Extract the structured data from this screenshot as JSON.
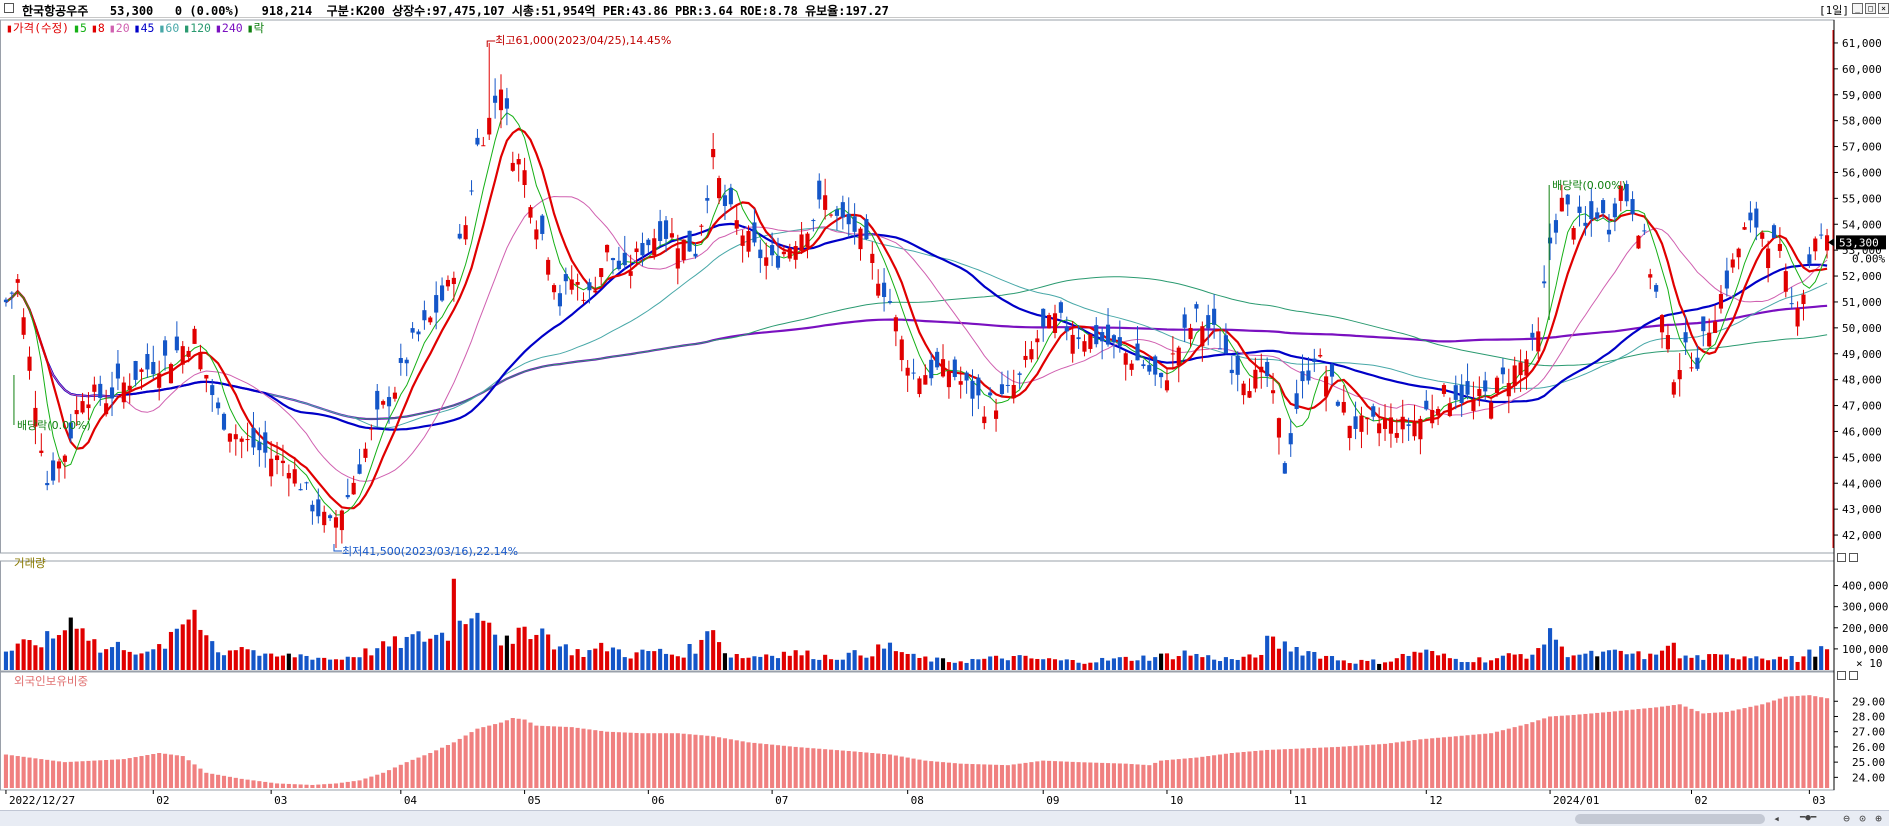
{
  "header": {
    "title": "한국항공우주   53,300   0 (0.00%)   918,214  구분:K200 상장수:97,475,107 시총:51,954억 PER:43.86 PBR:3.64 ROE:8.78 유보율:197.27",
    "period": "[1일]"
  },
  "legend": [
    {
      "label": "가격(수정)",
      "color": "#e00000"
    },
    {
      "label": "5",
      "color": "#16b016"
    },
    {
      "label": "8",
      "color": "#e00000"
    },
    {
      "label": "20",
      "color": "#d060b0"
    },
    {
      "label": "45",
      "color": "#0000c8"
    },
    {
      "label": "60",
      "color": "#48a8a8"
    },
    {
      "label": "120",
      "color": "#2a9a70"
    },
    {
      "label": "240",
      "color": "#7a10c0"
    },
    {
      "label": "락",
      "color": "#108010"
    }
  ],
  "panels": {
    "volume_title": "거래량",
    "foreign_title": "외국인보유비중"
  },
  "annotations": {
    "high": "최고61,000(2023/04/25),14.45%",
    "low": "최저41,500(2023/03/16),22.14%",
    "dividend": "배당락(0.00%)"
  },
  "chart_data": {
    "type": "candlestick",
    "current_price": "53,300",
    "current_change": "0.00%",
    "price_axis": {
      "min": 41500,
      "max": 61500,
      "ticks": [
        "61,000",
        "60,000",
        "59,000",
        "58,000",
        "57,000",
        "56,000",
        "55,000",
        "54,000",
        "53,000",
        "52,000",
        "51,000",
        "50,000",
        "49,000",
        "48,000",
        "47,000",
        "46,000",
        "45,000",
        "44,000",
        "43,000",
        "42,000"
      ]
    },
    "volume_axis": {
      "max": 450000,
      "ticks": [
        "400,000",
        "300,000",
        "200,000",
        "100,000"
      ],
      "unit": "× 10"
    },
    "foreign_axis": {
      "min": 23.3,
      "max": 30.2,
      "ticks": [
        "29.00",
        "28.00",
        "27.00",
        "26.00",
        "25.00",
        "24.00"
      ]
    },
    "x_labels": [
      "2022/12/27",
      "02",
      "03",
      "04",
      "05",
      "06",
      "07",
      "08",
      "09",
      "10",
      "11",
      "12",
      "2024/01",
      "02",
      "03"
    ],
    "x_label_days": [
      0,
      25,
      45,
      67,
      88,
      109,
      130,
      153,
      176,
      197,
      218,
      241,
      262,
      286,
      306
    ],
    "days": 310,
    "price_anchors": [
      [
        0,
        51000
      ],
      [
        2,
        51800
      ],
      [
        5,
        47200
      ],
      [
        7,
        44000
      ],
      [
        10,
        45200
      ],
      [
        13,
        47500
      ],
      [
        17,
        47300
      ],
      [
        22,
        48200
      ],
      [
        28,
        48900
      ],
      [
        32,
        49700
      ],
      [
        36,
        46700
      ],
      [
        40,
        45700
      ],
      [
        45,
        45000
      ],
      [
        48,
        44800
      ],
      [
        52,
        43200
      ],
      [
        55,
        42300
      ],
      [
        58,
        43500
      ],
      [
        61,
        45300
      ],
      [
        63,
        46500
      ],
      [
        66,
        47700
      ],
      [
        69,
        49400
      ],
      [
        72,
        50300
      ],
      [
        75,
        51500
      ],
      [
        78,
        54000
      ],
      [
        80,
        57000
      ],
      [
        82,
        58000
      ],
      [
        84,
        59500
      ],
      [
        86,
        56800
      ],
      [
        88,
        56000
      ],
      [
        90,
        54200
      ],
      [
        92,
        53000
      ],
      [
        94,
        51000
      ],
      [
        96,
        51900
      ],
      [
        99,
        51200
      ],
      [
        102,
        53000
      ],
      [
        105,
        52000
      ],
      [
        108,
        53100
      ],
      [
        111,
        53800
      ],
      [
        114,
        53400
      ],
      [
        117,
        53000
      ],
      [
        120,
        56500
      ],
      [
        122,
        54700
      ],
      [
        124,
        54000
      ],
      [
        127,
        53000
      ],
      [
        130,
        52500
      ],
      [
        133,
        53200
      ],
      [
        137,
        54300
      ],
      [
        139,
        55000
      ],
      [
        141,
        54200
      ],
      [
        144,
        53800
      ],
      [
        147,
        52600
      ],
      [
        150,
        51000
      ],
      [
        152,
        49400
      ],
      [
        154,
        48200
      ],
      [
        157,
        48300
      ],
      [
        160,
        48400
      ],
      [
        163,
        47700
      ],
      [
        166,
        47000
      ],
      [
        169,
        47200
      ],
      [
        172,
        48000
      ],
      [
        175,
        49600
      ],
      [
        178,
        50300
      ],
      [
        182,
        49800
      ],
      [
        186,
        49500
      ],
      [
        190,
        49000
      ],
      [
        193,
        48600
      ],
      [
        196,
        47800
      ],
      [
        199,
        49300
      ],
      [
        202,
        50400
      ],
      [
        205,
        49800
      ],
      [
        208,
        48700
      ],
      [
        211,
        48000
      ],
      [
        214,
        48100
      ],
      [
        216,
        46200
      ],
      [
        217,
        44600
      ],
      [
        219,
        47000
      ],
      [
        222,
        49000
      ],
      [
        224,
        48200
      ],
      [
        226,
        47300
      ],
      [
        228,
        46400
      ],
      [
        231,
        46100
      ],
      [
        234,
        46400
      ],
      [
        237,
        46200
      ],
      [
        240,
        46500
      ],
      [
        243,
        47300
      ],
      [
        246,
        47500
      ],
      [
        249,
        47100
      ],
      [
        252,
        47500
      ],
      [
        255,
        48200
      ],
      [
        258,
        48800
      ],
      [
        260,
        49600
      ],
      [
        262,
        53300
      ],
      [
        264,
        54800
      ],
      [
        266,
        54200
      ],
      [
        268,
        53800
      ],
      [
        270,
        54500
      ],
      [
        272,
        54000
      ],
      [
        274,
        55400
      ],
      [
        276,
        54700
      ],
      [
        278,
        53300
      ],
      [
        281,
        50300
      ],
      [
        283,
        48300
      ],
      [
        285,
        49000
      ],
      [
        287,
        48800
      ],
      [
        289,
        50100
      ],
      [
        292,
        51800
      ],
      [
        295,
        53700
      ],
      [
        297,
        54000
      ],
      [
        299,
        53500
      ],
      [
        301,
        52800
      ],
      [
        303,
        50800
      ],
      [
        305,
        51500
      ],
      [
        307,
        53600
      ],
      [
        309,
        53300
      ]
    ],
    "volume_anchors": [
      [
        0,
        90000
      ],
      [
        4,
        120000
      ],
      [
        8,
        150000
      ],
      [
        12,
        260000
      ],
      [
        16,
        90000
      ],
      [
        20,
        120000
      ],
      [
        24,
        70000
      ],
      [
        28,
        140000
      ],
      [
        32,
        300000
      ],
      [
        36,
        80000
      ],
      [
        40,
        120000
      ],
      [
        44,
        60000
      ],
      [
        50,
        70000
      ],
      [
        56,
        50000
      ],
      [
        62,
        90000
      ],
      [
        68,
        140000
      ],
      [
        72,
        160000
      ],
      [
        75,
        170000
      ],
      [
        76,
        420000
      ],
      [
        78,
        200000
      ],
      [
        80,
        340000
      ],
      [
        82,
        250000
      ],
      [
        84,
        150000
      ],
      [
        86,
        110000
      ],
      [
        88,
        200000
      ],
      [
        90,
        210000
      ],
      [
        94,
        110000
      ],
      [
        98,
        80000
      ],
      [
        102,
        110000
      ],
      [
        106,
        70000
      ],
      [
        110,
        90000
      ],
      [
        114,
        70000
      ],
      [
        118,
        120000
      ],
      [
        120,
        240000
      ],
      [
        122,
        80000
      ],
      [
        126,
        60000
      ],
      [
        130,
        80000
      ],
      [
        134,
        80000
      ],
      [
        140,
        60000
      ],
      [
        146,
        80000
      ],
      [
        150,
        110000
      ],
      [
        154,
        60000
      ],
      [
        160,
        40000
      ],
      [
        166,
        50000
      ],
      [
        170,
        60000
      ],
      [
        176,
        50000
      ],
      [
        182,
        40000
      ],
      [
        188,
        50000
      ],
      [
        194,
        60000
      ],
      [
        198,
        70000
      ],
      [
        200,
        80000
      ],
      [
        204,
        60000
      ],
      [
        208,
        50000
      ],
      [
        212,
        60000
      ],
      [
        214,
        130000
      ],
      [
        218,
        110000
      ],
      [
        222,
        80000
      ],
      [
        228,
        40000
      ],
      [
        234,
        40000
      ],
      [
        240,
        90000
      ],
      [
        246,
        50000
      ],
      [
        252,
        50000
      ],
      [
        256,
        70000
      ],
      [
        260,
        80000
      ],
      [
        262,
        210000
      ],
      [
        264,
        90000
      ],
      [
        268,
        70000
      ],
      [
        274,
        80000
      ],
      [
        280,
        60000
      ],
      [
        282,
        150000
      ],
      [
        284,
        60000
      ],
      [
        290,
        60000
      ],
      [
        296,
        70000
      ],
      [
        300,
        60000
      ],
      [
        304,
        50000
      ],
      [
        307,
        90000
      ],
      [
        309,
        90000
      ]
    ],
    "foreign_anchors": [
      [
        0,
        25.5
      ],
      [
        10,
        25.0
      ],
      [
        20,
        25.2
      ],
      [
        26,
        25.6
      ],
      [
        30,
        25.4
      ],
      [
        34,
        24.3
      ],
      [
        40,
        23.9
      ],
      [
        46,
        23.6
      ],
      [
        52,
        23.5
      ],
      [
        56,
        23.6
      ],
      [
        60,
        23.8
      ],
      [
        64,
        24.3
      ],
      [
        68,
        25.0
      ],
      [
        72,
        25.6
      ],
      [
        76,
        26.3
      ],
      [
        80,
        27.2
      ],
      [
        84,
        27.6
      ],
      [
        86,
        27.9
      ],
      [
        88,
        27.8
      ],
      [
        90,
        27.4
      ],
      [
        96,
        27.3
      ],
      [
        102,
        27.0
      ],
      [
        108,
        26.9
      ],
      [
        114,
        26.9
      ],
      [
        120,
        26.7
      ],
      [
        126,
        26.3
      ],
      [
        134,
        26.0
      ],
      [
        144,
        25.7
      ],
      [
        150,
        25.5
      ],
      [
        156,
        25.1
      ],
      [
        162,
        24.9
      ],
      [
        170,
        24.8
      ],
      [
        176,
        25.1
      ],
      [
        182,
        25.0
      ],
      [
        190,
        24.9
      ],
      [
        194,
        24.8
      ],
      [
        196,
        25.1
      ],
      [
        202,
        25.3
      ],
      [
        208,
        25.6
      ],
      [
        214,
        25.8
      ],
      [
        220,
        25.9
      ],
      [
        226,
        26.0
      ],
      [
        234,
        26.2
      ],
      [
        240,
        26.5
      ],
      [
        246,
        26.7
      ],
      [
        252,
        26.9
      ],
      [
        258,
        27.5
      ],
      [
        262,
        28.0
      ],
      [
        266,
        28.1
      ],
      [
        272,
        28.3
      ],
      [
        280,
        28.6
      ],
      [
        284,
        28.8
      ],
      [
        288,
        28.2
      ],
      [
        292,
        28.3
      ],
      [
        298,
        28.8
      ],
      [
        302,
        29.3
      ],
      [
        306,
        29.4
      ],
      [
        309,
        29.2
      ]
    ],
    "high_point": {
      "day": 82,
      "price": 61000
    },
    "low_point": {
      "day": 56,
      "price": 41500
    },
    "dividend_days": [
      0,
      261
    ]
  },
  "colors": {
    "up": "#e00000",
    "down": "#1456c8",
    "flat": "#000000",
    "foreign": "#f08080",
    "axis": "#000000"
  }
}
